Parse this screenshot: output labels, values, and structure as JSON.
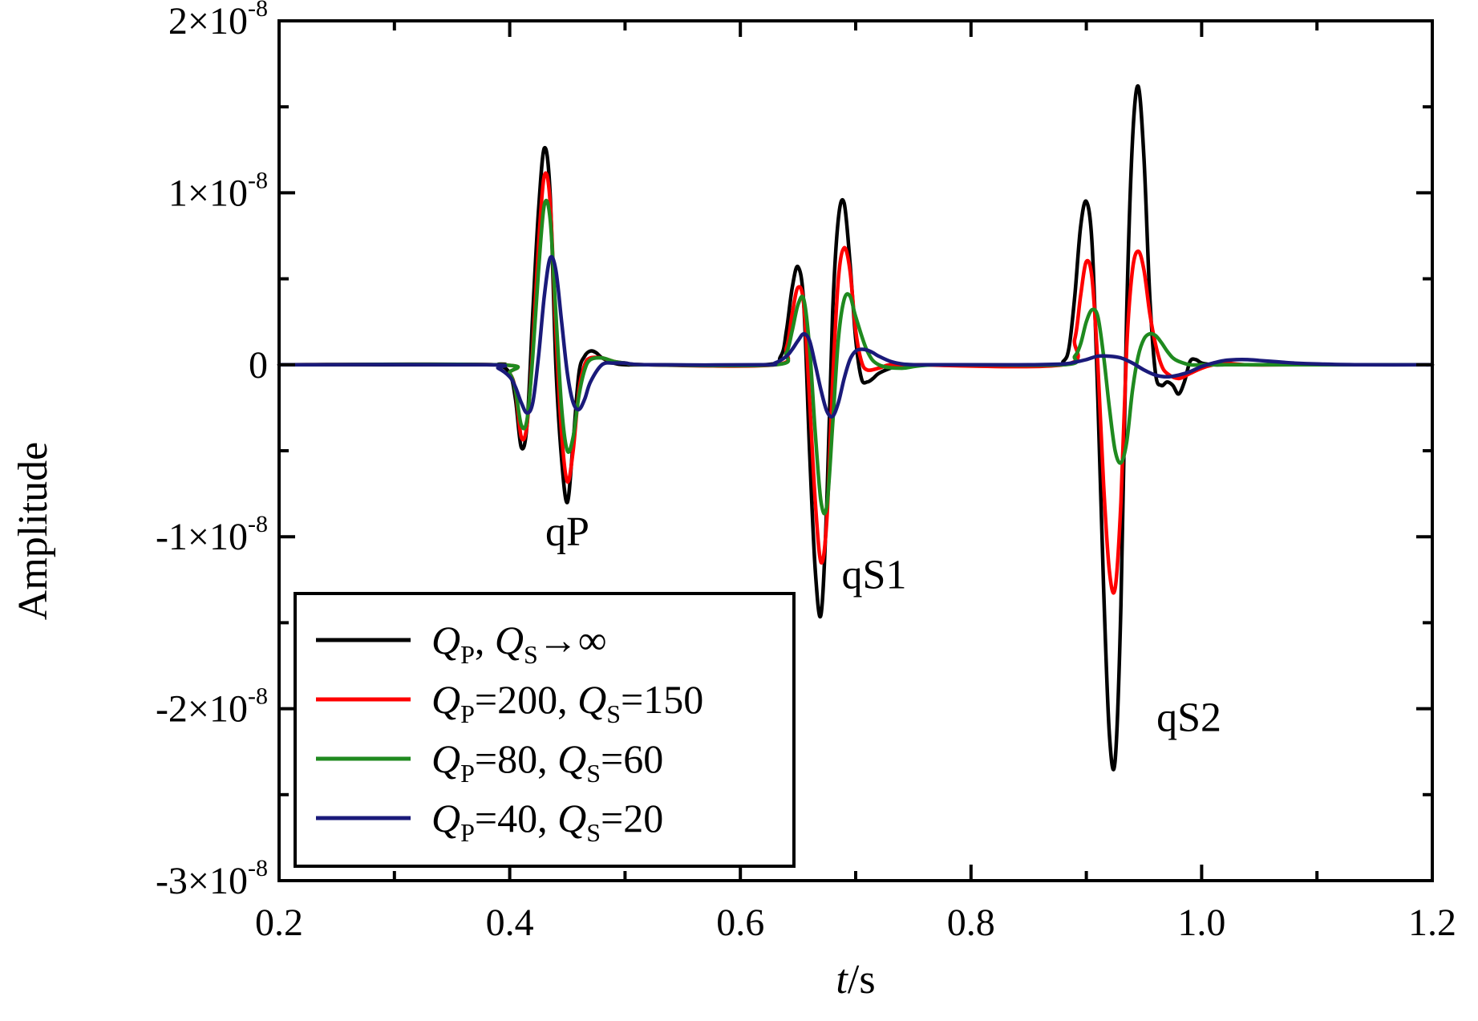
{
  "chart_data": {
    "type": "line",
    "xlabel": {
      "italic": "t",
      "rest": "/s"
    },
    "ylabel": "Amplitude",
    "xlim": [
      0.2,
      1.2
    ],
    "ylim": [
      -3e-08,
      2e-08
    ],
    "grid": false,
    "legend_position": "bottom-left",
    "x_ticks": [
      {
        "value": 0.2,
        "label": "0.2"
      },
      {
        "value": 0.4,
        "label": "0.4"
      },
      {
        "value": 0.6,
        "label": "0.6"
      },
      {
        "value": 0.8,
        "label": "0.8"
      },
      {
        "value": 1.0,
        "label": "1.0"
      },
      {
        "value": 1.2,
        "label": "1.2"
      }
    ],
    "y_ticks": [
      {
        "value": 2e-08,
        "mantissa": "2×10",
        "exp": "-8"
      },
      {
        "value": 1e-08,
        "mantissa": "1×10",
        "exp": "-8"
      },
      {
        "value": 0,
        "mantissa": "0",
        "exp": ""
      },
      {
        "value": -1e-08,
        "mantissa": "-1×10",
        "exp": "-8"
      },
      {
        "value": -2e-08,
        "mantissa": "-2×10",
        "exp": "-8"
      },
      {
        "value": -3e-08,
        "mantissa": "-3×10",
        "exp": "-8"
      }
    ],
    "annotations": [
      {
        "text": "qP",
        "x": 0.45,
        "y": -1.05e-08
      },
      {
        "text": "qS1",
        "x": 0.716,
        "y": -1.3e-08
      },
      {
        "text": "qS2",
        "x": 0.989,
        "y": -2.13e-08
      }
    ],
    "series": [
      {
        "name": "QP, QS→∞",
        "legend": [
          {
            "t": "Q",
            "i": true
          },
          {
            "t": "P",
            "sub": true
          },
          {
            "t": ", "
          },
          {
            "t": "Q",
            "i": true
          },
          {
            "t": "S",
            "sub": true
          },
          {
            "t": "→∞"
          }
        ],
        "color": "#000000",
        "x": [
          0.2,
          0.38,
          0.39,
          0.4,
          0.405,
          0.41,
          0.415,
          0.42,
          0.425,
          0.43,
          0.435,
          0.44,
          0.445,
          0.45,
          0.455,
          0.46,
          0.465,
          0.47,
          0.475,
          0.48,
          0.49,
          0.5,
          0.52,
          0.62,
          0.635,
          0.64,
          0.645,
          0.65,
          0.655,
          0.66,
          0.665,
          0.67,
          0.675,
          0.68,
          0.685,
          0.69,
          0.695,
          0.7,
          0.705,
          0.71,
          0.715,
          0.72,
          0.73,
          0.74,
          0.76,
          0.87,
          0.88,
          0.885,
          0.89,
          0.895,
          0.9,
          0.905,
          0.91,
          0.915,
          0.92,
          0.925,
          0.93,
          0.935,
          0.94,
          0.945,
          0.95,
          0.955,
          0.96,
          0.965,
          0.97,
          0.975,
          0.98,
          0.985,
          0.99,
          0.995,
          1.0,
          1.01,
          1.02,
          1.03,
          1.05,
          1.08,
          1.12,
          1.15,
          1.2
        ],
        "y": [
          0,
          0,
          0,
          -5e-10,
          -2e-09,
          -4.8e-09,
          -3.5e-09,
          3e-09,
          9e-09,
          1.26e-08,
          1e-08,
          0.0,
          -5.5e-09,
          -8e-09,
          -4.5e-09,
          -5e-10,
          5e-10,
          8e-10,
          7e-10,
          4e-10,
          1e-10,
          0,
          0,
          0,
          5e-10,
          2e-09,
          4.5e-09,
          5.7e-09,
          3.5e-09,
          -5e-09,
          -1.2e-08,
          -1.45e-08,
          -8e-09,
          3e-09,
          8.5e-09,
          9.4e-09,
          6e-09,
          1.5e-09,
          -8e-10,
          -1e-09,
          -8e-10,
          -5e-10,
          -2e-10,
          0,
          0,
          0,
          2e-10,
          1e-09,
          4e-09,
          8e-09,
          9.5e-09,
          7e-09,
          -2e-09,
          -1.3e-08,
          -2.15e-08,
          -2.3e-08,
          -1.4e-08,
          3e-09,
          1.3e-08,
          1.62e-08,
          1.2e-08,
          4e-09,
          -5e-10,
          -1.2e-09,
          -1e-09,
          -1.2e-09,
          -1.7e-09,
          -1e-09,
          2e-10,
          3e-10,
          1e-10,
          0,
          0,
          0,
          0,
          0,
          0,
          0,
          0
        ]
      },
      {
        "name": "QP=200, QS=150",
        "legend": [
          {
            "t": "Q",
            "i": true
          },
          {
            "t": "P",
            "sub": true
          },
          {
            "t": "=200, "
          },
          {
            "t": "Q",
            "i": true
          },
          {
            "t": "S",
            "sub": true
          },
          {
            "t": "=150"
          }
        ],
        "color": "#ff0000",
        "x": [
          0.2,
          0.39,
          0.4,
          0.405,
          0.41,
          0.415,
          0.42,
          0.425,
          0.43,
          0.435,
          0.44,
          0.445,
          0.45,
          0.455,
          0.46,
          0.465,
          0.47,
          0.48,
          0.49,
          0.5,
          0.52,
          0.63,
          0.64,
          0.645,
          0.65,
          0.655,
          0.66,
          0.665,
          0.67,
          0.675,
          0.68,
          0.685,
          0.69,
          0.695,
          0.7,
          0.705,
          0.71,
          0.72,
          0.73,
          0.75,
          0.88,
          0.89,
          0.895,
          0.9,
          0.905,
          0.91,
          0.915,
          0.92,
          0.925,
          0.93,
          0.935,
          0.94,
          0.945,
          0.95,
          0.955,
          0.96,
          0.965,
          0.97,
          0.98,
          0.99,
          1.0,
          1.01,
          1.02,
          1.04,
          1.08,
          1.12,
          1.15,
          1.2
        ],
        "y": [
          0,
          0,
          -5e-10,
          -1.5e-09,
          -4.2e-09,
          -3.5e-09,
          1e-09,
          7e-09,
          1.1e-08,
          9.5e-09,
          2e-09,
          -4e-09,
          -6.8e-09,
          -5e-09,
          -1.5e-09,
          0.0,
          4e-10,
          4e-10,
          2e-10,
          1e-10,
          0,
          0,
          1e-09,
          3e-09,
          4.5e-09,
          3.5e-09,
          -2e-09,
          -8e-09,
          -1.15e-08,
          -9e-09,
          -1e-09,
          5e-09,
          6.8e-09,
          5.5e-09,
          2e-09,
          2e-10,
          -3e-10,
          -2e-10,
          0,
          0,
          0,
          1.5e-09,
          4e-09,
          6e-09,
          5e-09,
          0.0,
          -7e-09,
          -1.2e-08,
          -1.3e-08,
          -8e-09,
          1e-09,
          5.5e-09,
          6.6e-09,
          5.5e-09,
          3e-09,
          1.2e-09,
          0.0,
          -5e-10,
          -8e-10,
          -5e-10,
          -2e-10,
          0,
          1e-10,
          0,
          0,
          0,
          0,
          0
        ]
      },
      {
        "name": "QP=80, QS=60",
        "legend": [
          {
            "t": "Q",
            "i": true
          },
          {
            "t": "P",
            "sub": true
          },
          {
            "t": "=80, "
          },
          {
            "t": "Q",
            "i": true
          },
          {
            "t": "S",
            "sub": true
          },
          {
            "t": "=60"
          }
        ],
        "color": "#1f8a1f",
        "x": [
          0.2,
          0.39,
          0.4,
          0.405,
          0.41,
          0.415,
          0.42,
          0.425,
          0.43,
          0.435,
          0.44,
          0.445,
          0.45,
          0.455,
          0.46,
          0.465,
          0.47,
          0.48,
          0.49,
          0.5,
          0.52,
          0.63,
          0.64,
          0.645,
          0.65,
          0.655,
          0.66,
          0.665,
          0.67,
          0.675,
          0.68,
          0.685,
          0.69,
          0.695,
          0.7,
          0.71,
          0.72,
          0.74,
          0.77,
          0.88,
          0.89,
          0.895,
          0.9,
          0.905,
          0.91,
          0.915,
          0.92,
          0.925,
          0.93,
          0.935,
          0.94,
          0.945,
          0.95,
          0.955,
          0.96,
          0.965,
          0.97,
          0.975,
          0.98,
          0.99,
          1.0,
          1.01,
          1.03,
          1.06,
          1.1,
          1.15,
          1.2
        ],
        "y": [
          0,
          0,
          -5e-10,
          -1.5e-09,
          -3.5e-09,
          -3.2e-09,
          5e-10,
          5.5e-09,
          9.3e-09,
          8.5e-09,
          3e-09,
          -2.5e-09,
          -5e-09,
          -4.2e-09,
          -1.8e-09,
          -3e-10,
          3e-10,
          4e-10,
          2e-10,
          1e-10,
          0,
          0,
          7e-10,
          2e-09,
          3.5e-09,
          3.8e-09,
          1e-09,
          -4e-09,
          -8e-09,
          -8.2e-09,
          -3.5e-09,
          1.5e-09,
          3.8e-09,
          4e-09,
          2.8e-09,
          8e-10,
          0.0,
          -2e-10,
          0,
          0,
          5e-10,
          1.2e-09,
          2.5e-09,
          3.2e-09,
          2.8e-09,
          5e-10,
          -2.5e-09,
          -5e-09,
          -5.7e-09,
          -4.5e-09,
          -1.5e-09,
          5e-10,
          1.5e-09,
          1.8e-09,
          1.7e-09,
          1.3e-09,
          8e-10,
          4e-10,
          2e-10,
          0,
          0,
          0,
          0,
          0,
          0,
          0,
          0
        ]
      },
      {
        "name": "QP=40, QS=20",
        "legend": [
          {
            "t": "Q",
            "i": true
          },
          {
            "t": "P",
            "sub": true
          },
          {
            "t": "=40, "
          },
          {
            "t": "Q",
            "i": true
          },
          {
            "t": "S",
            "sub": true
          },
          {
            "t": "=20"
          }
        ],
        "color": "#1a1a7a",
        "x": [
          0.2,
          0.38,
          0.39,
          0.4,
          0.405,
          0.41,
          0.415,
          0.42,
          0.425,
          0.43,
          0.435,
          0.44,
          0.445,
          0.45,
          0.455,
          0.46,
          0.465,
          0.47,
          0.48,
          0.49,
          0.5,
          0.52,
          0.62,
          0.63,
          0.64,
          0.645,
          0.65,
          0.655,
          0.66,
          0.665,
          0.67,
          0.675,
          0.68,
          0.685,
          0.69,
          0.695,
          0.7,
          0.705,
          0.71,
          0.715,
          0.72,
          0.73,
          0.74,
          0.75,
          0.76,
          0.77,
          0.79,
          0.85,
          0.88,
          0.89,
          0.9,
          0.91,
          0.92,
          0.93,
          0.94,
          0.95,
          0.96,
          0.97,
          0.98,
          0.99,
          1.0,
          1.01,
          1.02,
          1.03,
          1.04,
          1.05,
          1.06,
          1.07,
          1.08,
          1.1,
          1.14,
          1.2
        ],
        "y": [
          0,
          0,
          -2e-10,
          -7e-10,
          -1.3e-09,
          -2.2e-09,
          -2.8e-09,
          -2.2e-09,
          5e-10,
          4e-09,
          6.2e-09,
          5.5e-09,
          2.5e-09,
          -5e-10,
          -2.2e-09,
          -2.6e-09,
          -2e-09,
          -1e-09,
          0.0,
          1e-10,
          1e-10,
          0,
          0,
          1e-10,
          5e-10,
          9e-10,
          1.4e-09,
          1.8e-09,
          1.4e-09,
          0.0,
          -1.5e-09,
          -2.7e-09,
          -3e-09,
          -2.2e-09,
          -8e-10,
          3e-10,
          8e-10,
          9e-10,
          8.5e-10,
          7e-10,
          5e-10,
          2e-10,
          5e-11,
          0,
          0,
          0,
          0,
          0,
          5e-11,
          1.5e-10,
          3e-10,
          5e-10,
          5e-10,
          4e-10,
          1e-10,
          -3e-10,
          -6e-10,
          -7e-10,
          -6e-10,
          -4e-10,
          -1e-10,
          1e-10,
          2.5e-10,
          3e-10,
          3e-10,
          2.5e-10,
          2e-10,
          1.5e-10,
          1e-10,
          5e-11,
          0,
          0
        ]
      }
    ]
  }
}
